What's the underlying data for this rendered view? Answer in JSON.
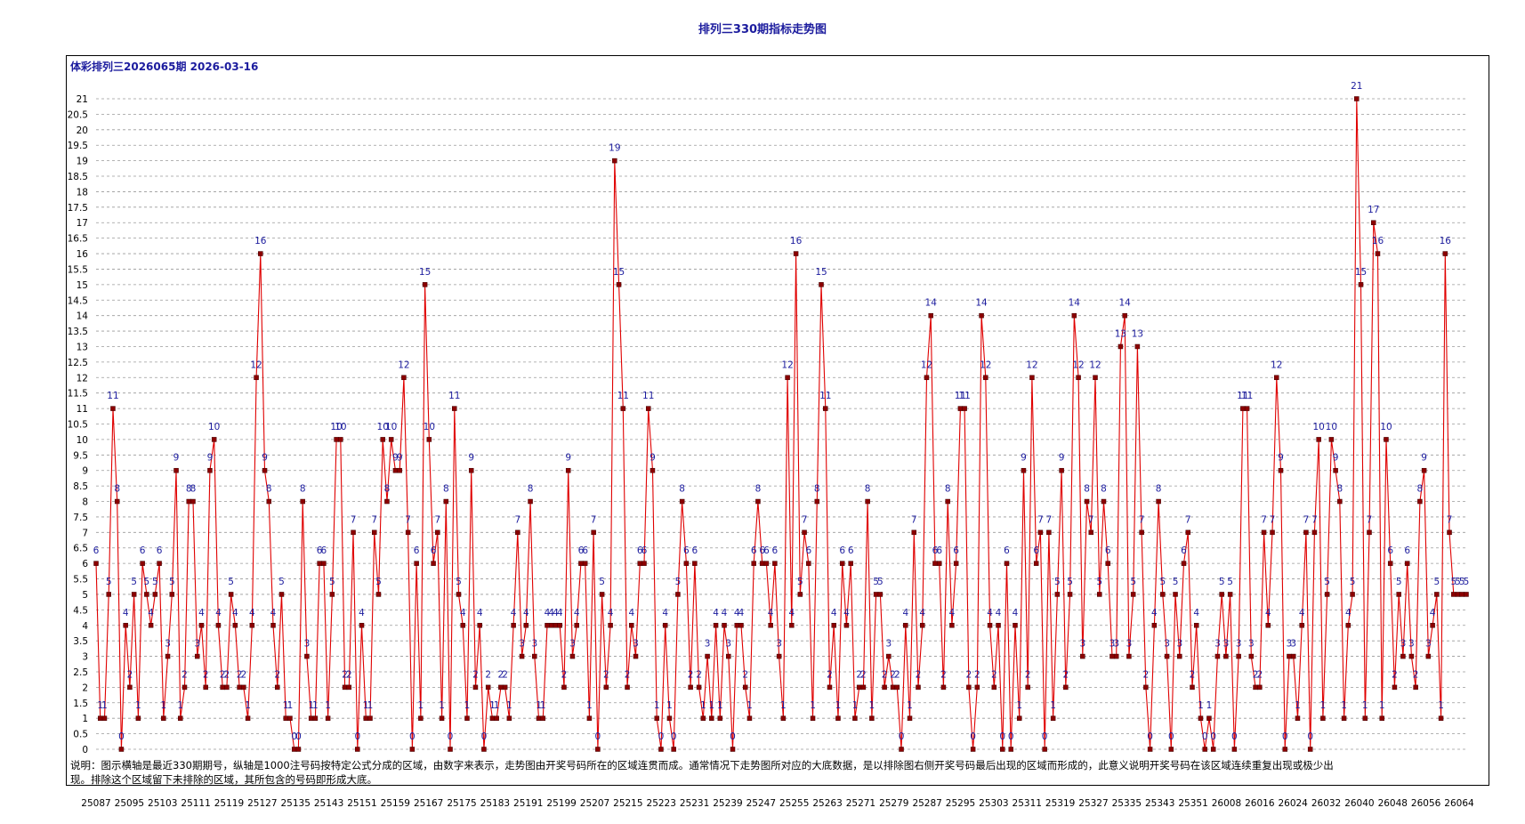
{
  "header": {
    "title": "排列三330期指标走势图",
    "subtitle": "体彩排列三2026065期 2026-03-16"
  },
  "note": "说明：图示横轴是最近330期期号，纵轴是1000注号码按特定公式分成的区域，由数字来表示，走势图由开奖号码所在的区域连贯而成。通常情况下走势图所对应的大底数据，是以排除图右侧开奖号码最后出现的区域而形成的，此意义说明开奖号码在该区域连续重复出现或极少出现。排除这个区域留下未排除的区域，其所包含的号码即形成大底。",
  "colors": {
    "line": "#e00000",
    "marker": "#8b0000",
    "label": "#1c1c9e",
    "grid": "#9a9a9a"
  },
  "chart_data": {
    "type": "line",
    "title": "排列三330期指标走势图",
    "subtitle": "体彩排列三2026065期 2026-03-16",
    "xlabel": "",
    "ylabel": "",
    "ylim": [
      0,
      21
    ],
    "yticks": [
      0,
      0.5,
      1,
      1.5,
      2,
      2.5,
      3,
      3.5,
      4,
      4.5,
      5,
      5.5,
      6,
      6.5,
      7,
      7.5,
      8,
      8.5,
      9,
      9.5,
      10,
      10.5,
      11,
      11.5,
      12,
      12.5,
      13,
      13.5,
      14,
      14.5,
      15,
      15.5,
      16,
      16.5,
      17,
      17.5,
      18,
      18.5,
      19,
      19.5,
      20,
      20.5,
      21
    ],
    "grid": true,
    "xtick_labels": [
      "25087",
      "25095",
      "25103",
      "25111",
      "25119",
      "25127",
      "25135",
      "25143",
      "25151",
      "25159",
      "25167",
      "25175",
      "25183",
      "25191",
      "25199",
      "25207",
      "25215",
      "25223",
      "25231",
      "25239",
      "25247",
      "25255",
      "25263",
      "25271",
      "25279",
      "25287",
      "25295",
      "25303",
      "25311",
      "25319",
      "25327",
      "25335",
      "25343",
      "25351",
      "26008",
      "26016",
      "26024",
      "26032",
      "26040",
      "26048",
      "26056",
      "26064"
    ],
    "values": [
      6,
      1,
      1,
      5,
      11,
      8,
      0,
      4,
      2,
      5,
      1,
      6,
      5,
      4,
      5,
      6,
      1,
      3,
      5,
      9,
      1,
      2,
      8,
      8,
      3,
      4,
      2,
      9,
      10,
      4,
      2,
      2,
      5,
      4,
      2,
      2,
      1,
      4,
      12,
      16,
      9,
      8,
      4,
      2,
      5,
      1,
      1,
      0,
      0,
      8,
      3,
      1,
      1,
      6,
      6,
      1,
      5,
      10,
      10,
      2,
      2,
      7,
      0,
      4,
      1,
      1,
      7,
      5,
      10,
      8,
      10,
      9,
      9,
      12,
      7,
      0,
      6,
      1,
      15,
      10,
      6,
      7,
      1,
      8,
      0,
      11,
      5,
      4,
      1,
      9,
      2,
      4,
      0,
      2,
      1,
      1,
      2,
      2,
      1,
      4,
      7,
      3,
      4,
      8,
      3,
      1,
      1,
      4,
      4,
      4,
      4,
      2,
      9,
      3,
      4,
      6,
      6,
      1,
      7,
      0,
      5,
      2,
      4,
      19,
      15,
      11,
      2,
      4,
      3,
      6,
      6,
      11,
      9,
      1,
      0,
      4,
      1,
      0,
      5,
      8,
      6,
      2,
      6,
      2,
      1,
      3,
      1,
      4,
      1,
      4,
      3,
      0,
      4,
      4,
      2,
      1,
      6,
      8,
      6,
      6,
      4,
      6,
      3,
      1,
      12,
      4,
      16,
      5,
      7,
      6,
      1,
      8,
      15,
      11,
      2,
      4,
      1,
      6,
      4,
      6,
      1,
      2,
      2,
      8,
      1,
      5,
      5,
      2,
      3,
      2,
      2,
      0,
      4,
      1,
      7,
      2,
      4,
      12,
      14,
      6,
      6,
      2,
      8,
      4,
      6,
      11,
      11,
      2,
      0,
      2,
      14,
      12,
      4,
      2,
      4,
      0,
      6,
      0,
      4,
      1,
      9,
      2,
      12,
      6,
      7,
      0,
      7,
      1,
      5,
      9,
      2,
      5,
      14,
      12,
      3,
      8,
      7,
      12,
      5,
      8,
      6,
      3,
      3,
      13,
      14,
      3,
      5,
      13,
      7,
      2,
      0,
      4,
      8,
      5,
      3,
      0,
      5,
      3,
      6,
      7,
      2,
      4,
      1,
      0,
      1,
      0,
      3,
      5,
      3,
      5,
      0,
      3,
      11,
      11,
      3,
      2,
      2,
      7,
      4,
      7,
      12,
      9,
      0,
      3,
      3,
      1,
      4,
      7,
      0,
      7,
      10,
      1,
      5,
      10,
      9,
      8,
      1,
      4,
      5,
      21,
      15,
      1,
      7,
      17,
      16,
      1,
      10,
      6,
      2,
      5,
      3,
      6,
      3,
      2,
      8,
      9,
      3,
      4,
      5,
      1,
      16,
      7,
      5,
      5,
      5,
      5
    ]
  }
}
